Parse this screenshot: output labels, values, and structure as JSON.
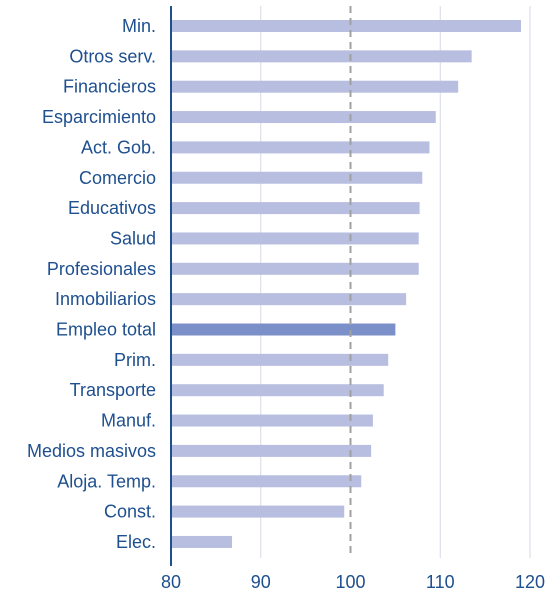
{
  "chart_data": {
    "type": "bar",
    "orientation": "horizontal",
    "categories": [
      "Min.",
      "Otros serv.",
      "Financieros",
      "Esparcimiento",
      "Act. Gob.",
      "Comercio",
      "Educativos",
      "Salud",
      "Profesionales",
      "Inmobiliarios",
      "Empleo total",
      "Prim.",
      "Transporte",
      "Manuf.",
      "Medios masivos",
      "Aloja. Temp.",
      "Const.",
      "Elec."
    ],
    "values": [
      119,
      113.5,
      112,
      109.5,
      108.8,
      108,
      107.7,
      107.6,
      107.6,
      106.2,
      105,
      104.2,
      103.7,
      102.5,
      102.3,
      101.2,
      99.3,
      86.8
    ],
    "highlight": "Empleo total",
    "xlim": [
      80,
      120
    ],
    "xticks": [
      80,
      90,
      100,
      110,
      120
    ],
    "reference_line": 100,
    "grid": "vertical",
    "colors": {
      "bar": "#b8bee0",
      "highlight_bar": "#7b8fc8",
      "axis": "#1e4f8f",
      "text": "#1e4f8f",
      "grid": "#d6d9e6",
      "reference": "#a0a0a0"
    }
  }
}
